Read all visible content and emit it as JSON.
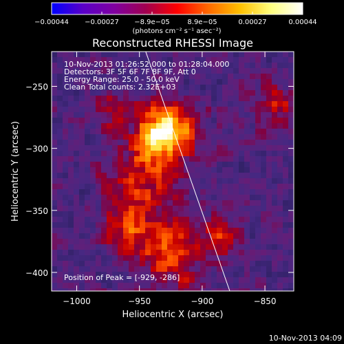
{
  "chart_data": {
    "type": "heatmap",
    "title": "Reconstructed RHESSI Image",
    "xlabel": "Heliocentric X (arcsec)",
    "ylabel": "Heliocentric Y (arcsec)",
    "xlim": [
      -1020,
      -827
    ],
    "ylim": [
      -415,
      -222
    ],
    "x_ticks": [
      {
        "value": -1000,
        "label": "−1000"
      },
      {
        "value": -950,
        "label": "−950"
      },
      {
        "value": -900,
        "label": "−900"
      },
      {
        "value": -850,
        "label": "−850"
      }
    ],
    "y_ticks": [
      {
        "value": -250,
        "label": "−250"
      },
      {
        "value": -300,
        "label": "−300"
      },
      {
        "value": -350,
        "label": "−350"
      },
      {
        "value": -400,
        "label": "−400"
      }
    ],
    "colorbar": {
      "range": [
        -0.00044,
        0.00044
      ],
      "tick_labels": [
        "−0.00044",
        "−0.00027",
        "−8.9e−05",
        "8.9e−05",
        "0.00027",
        "0.00044"
      ],
      "unit_label": "(photons cm⁻² s⁻¹ asec⁻²)",
      "colormap": [
        "#0000ff",
        "#5a00c8",
        "#8000a0",
        "#a00050",
        "#ff0000",
        "#ff6a00",
        "#ffc000",
        "#ffff80",
        "#ffffff"
      ]
    },
    "peak": {
      "x": -929,
      "y": -286
    },
    "annotations": [
      "10-Nov-2013 01:26:52.000 to 01:28:04.000",
      "Detectors: 3F 5F 6F 7F 8F 9F, Att 0",
      "Energy Range: 25.0 - 50.0 keV",
      "Clean     Total counts: 2.32E+03"
    ],
    "peak_label": "Position of Peak = [-929, -286]",
    "limb_line": {
      "x": [
        -945,
        -878
      ],
      "y": [
        -222,
        -415
      ]
    },
    "grid": false
  },
  "footer": {
    "timestamp": "10-Nov-2013 04:09"
  }
}
